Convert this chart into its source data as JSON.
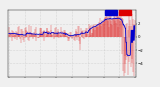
{
  "background_color": "#f0f0f0",
  "grid_color": "#c0c0c0",
  "line_color": "#dd0000",
  "median_color": "#0000cc",
  "legend_blue": "#0000cc",
  "legend_red": "#dd0000",
  "ylim": [
    -6,
    4
  ],
  "yticks": [
    -4,
    -2,
    0,
    2
  ],
  "num_points": 288,
  "seed": 7
}
